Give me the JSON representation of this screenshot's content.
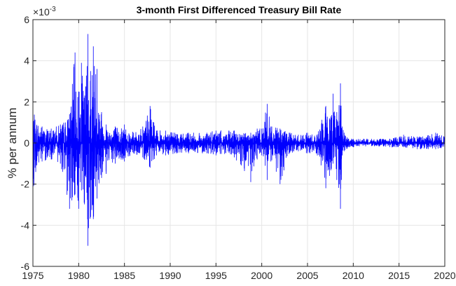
{
  "chart_data": {
    "type": "line",
    "title": "3-month First Differenced Treasury Bill Rate",
    "xlabel": "",
    "ylabel": "% per annum",
    "y_scale_factor": "×10",
    "y_scale_power": "-3",
    "xlim": [
      1975,
      2020
    ],
    "ylim": [
      -6,
      6
    ],
    "x_ticks": [
      "1975",
      "1980",
      "1985",
      "1990",
      "1995",
      "2000",
      "2005",
      "2010",
      "2015",
      "2020"
    ],
    "y_ticks": [
      "-6",
      "-4",
      "-2",
      "0",
      "2",
      "4",
      "6"
    ],
    "grid": true,
    "series": [
      {
        "color": "#0000ff",
        "x": [
          1975.0,
          1976.0,
          1977.0,
          1978.0,
          1979.0,
          1979.6,
          1980.0,
          1980.3,
          1980.6,
          1981.0,
          1981.3,
          1981.6,
          1982.0,
          1982.5,
          1983.0,
          1984.0,
          1985.0,
          1986.0,
          1987.0,
          1987.8,
          1988.5,
          1989.5,
          1990.5,
          1992.0,
          1994.0,
          1995.0,
          1997.0,
          1998.8,
          1999.5,
          2000.0,
          2000.6,
          2001.0,
          2002.0,
          2003.0,
          2004.0,
          2005.0,
          2006.0,
          2007.0,
          2007.4,
          2007.8,
          2008.2,
          2008.6,
          2008.8,
          2009.0,
          2009.5,
          2010.0,
          2012.0,
          2014.0,
          2015.5,
          2017.0,
          2019.0,
          2020.0
        ],
        "high": [
          1.5,
          0.8,
          0.7,
          0.9,
          1.4,
          4.4,
          2.5,
          3.9,
          2.2,
          5.3,
          3.5,
          4.7,
          3.6,
          1.5,
          0.9,
          0.8,
          0.9,
          0.5,
          0.8,
          1.8,
          0.6,
          0.6,
          0.5,
          0.5,
          0.5,
          0.6,
          0.6,
          0.5,
          0.7,
          0.7,
          1.9,
          0.8,
          0.7,
          0.5,
          0.4,
          0.5,
          0.4,
          1.8,
          1.2,
          2.4,
          1.5,
          2.9,
          0.8,
          0.5,
          0.2,
          0.2,
          0.2,
          0.2,
          0.4,
          0.3,
          0.5,
          0.3
        ],
        "low": [
          -2.2,
          -0.9,
          -0.8,
          -1.0,
          -3.2,
          -2.5,
          -3.2,
          -2.3,
          -2.9,
          -5.0,
          -3.6,
          -3.7,
          -2.7,
          -1.7,
          -1.5,
          -1.0,
          -0.9,
          -0.5,
          -0.7,
          -1.2,
          -0.6,
          -0.6,
          -0.5,
          -0.5,
          -0.5,
          -0.6,
          -0.7,
          -1.9,
          -0.8,
          -0.6,
          -1.8,
          -0.9,
          -2.0,
          -0.5,
          -0.4,
          -0.5,
          -0.5,
          -2.2,
          -1.6,
          -1.0,
          -1.8,
          -3.2,
          -0.6,
          -0.4,
          -0.2,
          -0.2,
          -0.15,
          -0.2,
          -0.2,
          -0.3,
          -0.3,
          -0.2
        ]
      }
    ]
  }
}
